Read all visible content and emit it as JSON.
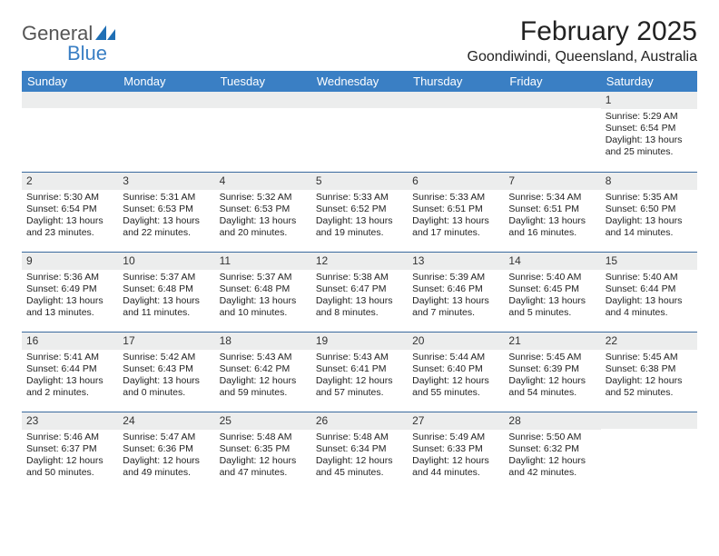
{
  "logo": {
    "word1": "General",
    "word2": "Blue"
  },
  "title": "February 2025",
  "location": "Goondiwindi, Queensland, Australia",
  "colors": {
    "header_bg": "#3a7fc4",
    "header_fg": "#ffffff",
    "daynum_bg": "#eceded",
    "row_border": "#3a6a9e",
    "logo_accent": "#1f6fb5",
    "logo_gray": "#555555"
  },
  "day_headers": [
    "Sunday",
    "Monday",
    "Tuesday",
    "Wednesday",
    "Thursday",
    "Friday",
    "Saturday"
  ],
  "weeks": [
    [
      {
        "n": "",
        "lines": []
      },
      {
        "n": "",
        "lines": []
      },
      {
        "n": "",
        "lines": []
      },
      {
        "n": "",
        "lines": []
      },
      {
        "n": "",
        "lines": []
      },
      {
        "n": "",
        "lines": []
      },
      {
        "n": "1",
        "lines": [
          "Sunrise: 5:29 AM",
          "Sunset: 6:54 PM",
          "Daylight: 13 hours and 25 minutes."
        ]
      }
    ],
    [
      {
        "n": "2",
        "lines": [
          "Sunrise: 5:30 AM",
          "Sunset: 6:54 PM",
          "Daylight: 13 hours and 23 minutes."
        ]
      },
      {
        "n": "3",
        "lines": [
          "Sunrise: 5:31 AM",
          "Sunset: 6:53 PM",
          "Daylight: 13 hours and 22 minutes."
        ]
      },
      {
        "n": "4",
        "lines": [
          "Sunrise: 5:32 AM",
          "Sunset: 6:53 PM",
          "Daylight: 13 hours and 20 minutes."
        ]
      },
      {
        "n": "5",
        "lines": [
          "Sunrise: 5:33 AM",
          "Sunset: 6:52 PM",
          "Daylight: 13 hours and 19 minutes."
        ]
      },
      {
        "n": "6",
        "lines": [
          "Sunrise: 5:33 AM",
          "Sunset: 6:51 PM",
          "Daylight: 13 hours and 17 minutes."
        ]
      },
      {
        "n": "7",
        "lines": [
          "Sunrise: 5:34 AM",
          "Sunset: 6:51 PM",
          "Daylight: 13 hours and 16 minutes."
        ]
      },
      {
        "n": "8",
        "lines": [
          "Sunrise: 5:35 AM",
          "Sunset: 6:50 PM",
          "Daylight: 13 hours and 14 minutes."
        ]
      }
    ],
    [
      {
        "n": "9",
        "lines": [
          "Sunrise: 5:36 AM",
          "Sunset: 6:49 PM",
          "Daylight: 13 hours and 13 minutes."
        ]
      },
      {
        "n": "10",
        "lines": [
          "Sunrise: 5:37 AM",
          "Sunset: 6:48 PM",
          "Daylight: 13 hours and 11 minutes."
        ]
      },
      {
        "n": "11",
        "lines": [
          "Sunrise: 5:37 AM",
          "Sunset: 6:48 PM",
          "Daylight: 13 hours and 10 minutes."
        ]
      },
      {
        "n": "12",
        "lines": [
          "Sunrise: 5:38 AM",
          "Sunset: 6:47 PM",
          "Daylight: 13 hours and 8 minutes."
        ]
      },
      {
        "n": "13",
        "lines": [
          "Sunrise: 5:39 AM",
          "Sunset: 6:46 PM",
          "Daylight: 13 hours and 7 minutes."
        ]
      },
      {
        "n": "14",
        "lines": [
          "Sunrise: 5:40 AM",
          "Sunset: 6:45 PM",
          "Daylight: 13 hours and 5 minutes."
        ]
      },
      {
        "n": "15",
        "lines": [
          "Sunrise: 5:40 AM",
          "Sunset: 6:44 PM",
          "Daylight: 13 hours and 4 minutes."
        ]
      }
    ],
    [
      {
        "n": "16",
        "lines": [
          "Sunrise: 5:41 AM",
          "Sunset: 6:44 PM",
          "Daylight: 13 hours and 2 minutes."
        ]
      },
      {
        "n": "17",
        "lines": [
          "Sunrise: 5:42 AM",
          "Sunset: 6:43 PM",
          "Daylight: 13 hours and 0 minutes."
        ]
      },
      {
        "n": "18",
        "lines": [
          "Sunrise: 5:43 AM",
          "Sunset: 6:42 PM",
          "Daylight: 12 hours and 59 minutes."
        ]
      },
      {
        "n": "19",
        "lines": [
          "Sunrise: 5:43 AM",
          "Sunset: 6:41 PM",
          "Daylight: 12 hours and 57 minutes."
        ]
      },
      {
        "n": "20",
        "lines": [
          "Sunrise: 5:44 AM",
          "Sunset: 6:40 PM",
          "Daylight: 12 hours and 55 minutes."
        ]
      },
      {
        "n": "21",
        "lines": [
          "Sunrise: 5:45 AM",
          "Sunset: 6:39 PM",
          "Daylight: 12 hours and 54 minutes."
        ]
      },
      {
        "n": "22",
        "lines": [
          "Sunrise: 5:45 AM",
          "Sunset: 6:38 PM",
          "Daylight: 12 hours and 52 minutes."
        ]
      }
    ],
    [
      {
        "n": "23",
        "lines": [
          "Sunrise: 5:46 AM",
          "Sunset: 6:37 PM",
          "Daylight: 12 hours and 50 minutes."
        ]
      },
      {
        "n": "24",
        "lines": [
          "Sunrise: 5:47 AM",
          "Sunset: 6:36 PM",
          "Daylight: 12 hours and 49 minutes."
        ]
      },
      {
        "n": "25",
        "lines": [
          "Sunrise: 5:48 AM",
          "Sunset: 6:35 PM",
          "Daylight: 12 hours and 47 minutes."
        ]
      },
      {
        "n": "26",
        "lines": [
          "Sunrise: 5:48 AM",
          "Sunset: 6:34 PM",
          "Daylight: 12 hours and 45 minutes."
        ]
      },
      {
        "n": "27",
        "lines": [
          "Sunrise: 5:49 AM",
          "Sunset: 6:33 PM",
          "Daylight: 12 hours and 44 minutes."
        ]
      },
      {
        "n": "28",
        "lines": [
          "Sunrise: 5:50 AM",
          "Sunset: 6:32 PM",
          "Daylight: 12 hours and 42 minutes."
        ]
      },
      {
        "n": "",
        "lines": []
      }
    ]
  ]
}
